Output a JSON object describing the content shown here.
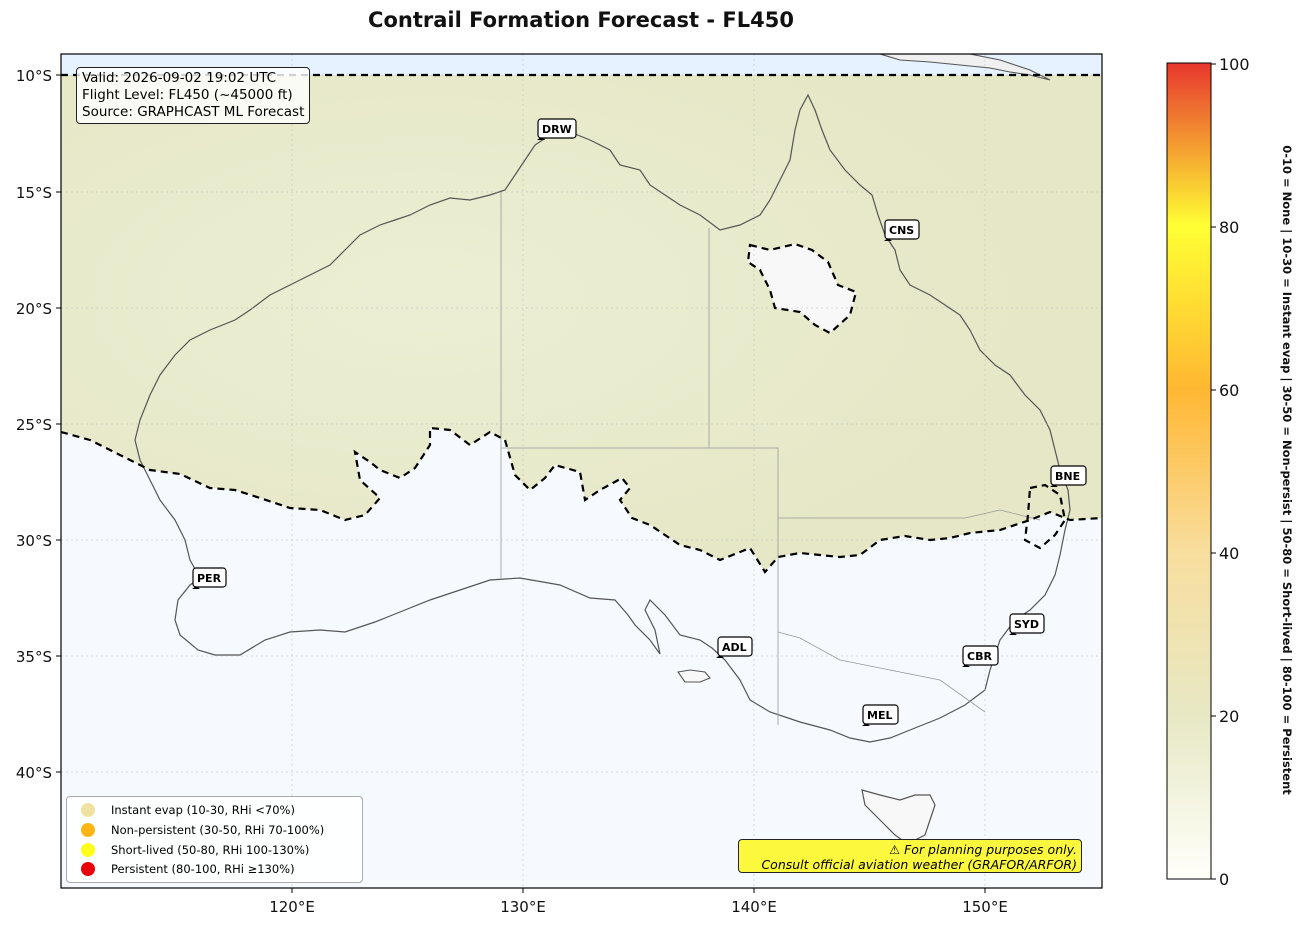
{
  "title": "Contrail Formation Forecast - FL450",
  "info_box": {
    "line1": "Valid: 2026-09-02 19:02 UTC",
    "line2": "Flight Level: FL450 (~45000 ft)",
    "line3": "Source: GRAPHCAST ML Forecast"
  },
  "axes": {
    "lat_ticks": [
      "10°S",
      "15°S",
      "20°S",
      "25°S",
      "30°S",
      "35°S",
      "40°S"
    ],
    "lon_ticks": [
      "120°E",
      "130°E",
      "140°E",
      "150°E"
    ]
  },
  "airports": [
    {
      "code": "DRW"
    },
    {
      "code": "CNS"
    },
    {
      "code": "BNE"
    },
    {
      "code": "PER"
    },
    {
      "code": "SYD"
    },
    {
      "code": "ADL"
    },
    {
      "code": "CBR"
    },
    {
      "code": "MEL"
    }
  ],
  "legend": [
    {
      "label": "Instant evap (10-30, RHi <70%)",
      "color": "#f0e2a0"
    },
    {
      "label": "Non-persistent (30-50, RHi 70-100%)",
      "color": "#fdb515"
    },
    {
      "label": "Short-lived (50-80, RHi 100-130%)",
      "color": "#ffff1a"
    },
    {
      "label": "Persistent (80-100, RHi ≥130%)",
      "color": "#e8000b"
    }
  ],
  "disclaimer": {
    "line1": "⚠ For planning purposes only.",
    "line2": "Consult official aviation weather (GRAFOR/ARFOR)"
  },
  "colorbar": {
    "ticks": [
      "0",
      "20",
      "40",
      "60",
      "80",
      "100"
    ],
    "side_label": "0-10 = None  |  10-30 = Instant evap  |  30-50 = Non-persist  |  50-80 = Short-lived  |  80-100 = Persistent",
    "colors": [
      "#fffffa",
      "#e7e8c4",
      "#f8de9e",
      "#ffb732",
      "#ffff33",
      "#e8372e"
    ]
  },
  "icons": {
    "airport_marker": "airplane-icon",
    "warning": "warning-icon"
  }
}
